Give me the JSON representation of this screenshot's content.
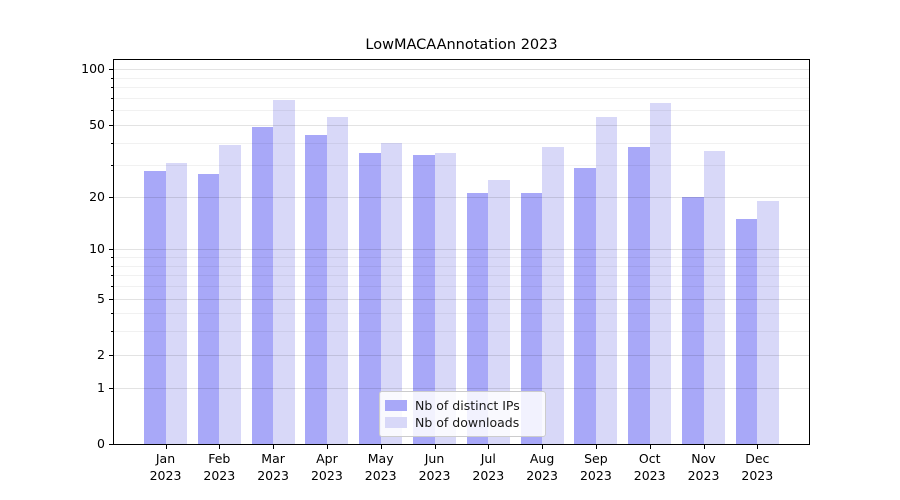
{
  "title": "LowMACAAnnotation 2023",
  "chart_data": {
    "type": "bar",
    "title": "LowMACAAnnotation 2023",
    "categories": [
      "Jan 2023",
      "Feb 2023",
      "Mar 2023",
      "Apr 2023",
      "May 2023",
      "Jun 2023",
      "Jul 2023",
      "Aug 2023",
      "Sep 2023",
      "Oct 2023",
      "Nov 2023",
      "Dec 2023"
    ],
    "series": [
      {
        "name": "Nb of distinct IPs",
        "color": "#a8a8f8",
        "values": [
          28,
          27,
          49,
          44,
          35,
          34,
          21,
          21,
          29,
          38,
          20,
          15
        ]
      },
      {
        "name": "Nb of downloads",
        "color": "#d8d8f8",
        "values": [
          31,
          39,
          68,
          55,
          40,
          35,
          25,
          38,
          55,
          66,
          36,
          19
        ]
      }
    ],
    "xlabel": "",
    "ylabel": "",
    "y_scale": "log1p",
    "y_ticks": [
      0,
      1,
      2,
      5,
      10,
      20,
      50,
      100
    ],
    "y_minor_ticks": [
      3,
      4,
      6,
      7,
      8,
      9,
      30,
      40,
      60,
      70,
      80,
      90
    ],
    "ylim": [
      0,
      112.5
    ],
    "grid": true,
    "legend_position": "lower center"
  },
  "colors": {
    "axis": "#000000",
    "grid_major": "rgba(0,0,0,0.11)",
    "grid_minor": "rgba(0,0,0,0.055)",
    "background": "#ffffff"
  },
  "legend": {
    "item_1": "Nb of distinct IPs",
    "item_2": "Nb of downloads"
  }
}
